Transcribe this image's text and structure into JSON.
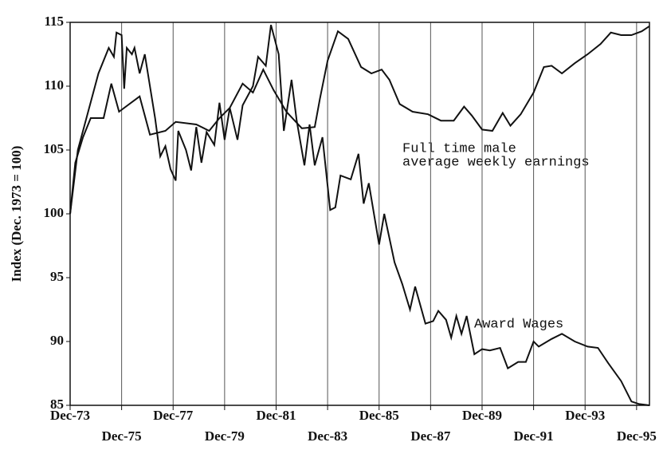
{
  "chart_data": {
    "type": "line",
    "y_label": "Index (Dec. 1973 = 100)",
    "annotations": [
      "Full time male",
      "average weekly earnings",
      "Award Wages"
    ],
    "xlim": [
      1973.9,
      1996.4
    ],
    "ylim": [
      85,
      115
    ],
    "yticks": [
      85,
      90,
      95,
      100,
      105,
      110,
      115
    ],
    "xticks": [
      {
        "value": 1973.9,
        "label": "Dec-73"
      },
      {
        "value": 1975.9,
        "label": "Dec-75"
      },
      {
        "value": 1977.9,
        "label": "Dec-77"
      },
      {
        "value": 1979.9,
        "label": "Dec-79"
      },
      {
        "value": 1981.9,
        "label": "Dec-81"
      },
      {
        "value": 1983.9,
        "label": "Dec-83"
      },
      {
        "value": 1985.9,
        "label": "Dec-85"
      },
      {
        "value": 1987.9,
        "label": "Dec-87"
      },
      {
        "value": 1989.9,
        "label": "Dec-89"
      },
      {
        "value": 1991.9,
        "label": "Dec-91"
      },
      {
        "value": 1993.9,
        "label": "Dec-93"
      },
      {
        "value": 1995.9,
        "label": "Dec-95"
      }
    ],
    "grid": true,
    "series": [
      {
        "color": "#111111",
        "x": [
          1973.9,
          1974.1,
          1974.4,
          1974.7,
          1975.2,
          1975.5,
          1975.8,
          1976.6,
          1977.0,
          1977.6,
          1978.0,
          1978.8,
          1979.3,
          1979.7,
          1980.1,
          1980.6,
          1981.0,
          1981.4,
          1981.8,
          1982.3,
          1982.9,
          1983.4,
          1983.6,
          1983.9,
          1984.3,
          1984.7,
          1985.2,
          1985.6,
          1986.0,
          1986.3,
          1986.7,
          1987.2,
          1987.8,
          1988.3,
          1988.8,
          1989.2,
          1989.5,
          1989.9,
          1990.3,
          1990.7,
          1991.0,
          1991.4,
          1991.9,
          1992.3,
          1992.6,
          1993.0,
          1993.5,
          1994.0,
          1994.5,
          1994.9,
          1995.3,
          1995.7,
          1996.1,
          1996.4
        ],
        "values": [
          100,
          104,
          106,
          107.5,
          107.5,
          110.2,
          108,
          109.2,
          106.2,
          106.5,
          107.2,
          107,
          106.5,
          107.5,
          108.3,
          110.2,
          109.5,
          111.3,
          109.7,
          108,
          106.7,
          106.8,
          109,
          112,
          114.3,
          113.7,
          111.5,
          111,
          111.3,
          110.5,
          108.6,
          108,
          107.8,
          107.3,
          107.3,
          108.4,
          107.7,
          106.6,
          106.5,
          107.9,
          106.9,
          107.8,
          109.5,
          111.5,
          111.6,
          111,
          111.8,
          112.5,
          113.3,
          114.2,
          114,
          114,
          114.3,
          114.7
        ]
      },
      {
        "color": "#111111",
        "x": [
          1973.9,
          1974.2,
          1974.6,
          1975.0,
          1975.4,
          1975.6,
          1975.7,
          1975.9,
          1976.0,
          1976.1,
          1976.3,
          1976.4,
          1976.6,
          1976.8,
          1977.0,
          1977.2,
          1977.4,
          1977.6,
          1977.8,
          1978.0,
          1978.1,
          1978.4,
          1978.6,
          1978.8,
          1979.0,
          1979.2,
          1979.5,
          1979.7,
          1979.9,
          1980.1,
          1980.4,
          1980.6,
          1981.0,
          1981.2,
          1981.5,
          1981.7,
          1982.0,
          1982.2,
          1982.5,
          1982.7,
          1983.0,
          1983.2,
          1983.4,
          1983.7,
          1984.0,
          1984.2,
          1984.4,
          1984.8,
          1985.1,
          1985.3,
          1985.5,
          1985.9,
          1986.1,
          1986.5,
          1986.8,
          1987.1,
          1987.3,
          1987.7,
          1988.0,
          1988.2,
          1988.5,
          1988.7,
          1988.9,
          1989.1,
          1989.3,
          1989.6,
          1989.9,
          1990.2,
          1990.6,
          1990.9,
          1991.3,
          1991.6,
          1991.9,
          1992.1,
          1992.6,
          1993.0,
          1993.5,
          1994.0,
          1994.4,
          1994.8,
          1995.3,
          1995.7,
          1996.0,
          1996.4
        ],
        "values": [
          100,
          105,
          108,
          111,
          113,
          112.3,
          114.2,
          114,
          109.8,
          113,
          112.5,
          113,
          111,
          112.5,
          110,
          107.5,
          104.5,
          105.3,
          103.5,
          102.6,
          106.5,
          105,
          103.4,
          106.8,
          104,
          106.4,
          105.4,
          108.7,
          105.8,
          108.3,
          105.8,
          108.5,
          110,
          112.3,
          111.6,
          114.8,
          112.5,
          106.5,
          110.5,
          107.3,
          103.8,
          107,
          103.8,
          106,
          100.3,
          100.5,
          103,
          102.7,
          104.7,
          100.8,
          102.4,
          97.6,
          100,
          96.2,
          94.5,
          92.5,
          94.3,
          91.4,
          91.6,
          92.4,
          91.7,
          90.3,
          92,
          90.6,
          92,
          89,
          89.4,
          89.3,
          89.5,
          87.9,
          88.4,
          88.4,
          90,
          89.6,
          90.2,
          90.6,
          90,
          89.6,
          89.5,
          88.3,
          86.9,
          85.3,
          85.1,
          85
        ]
      }
    ]
  }
}
